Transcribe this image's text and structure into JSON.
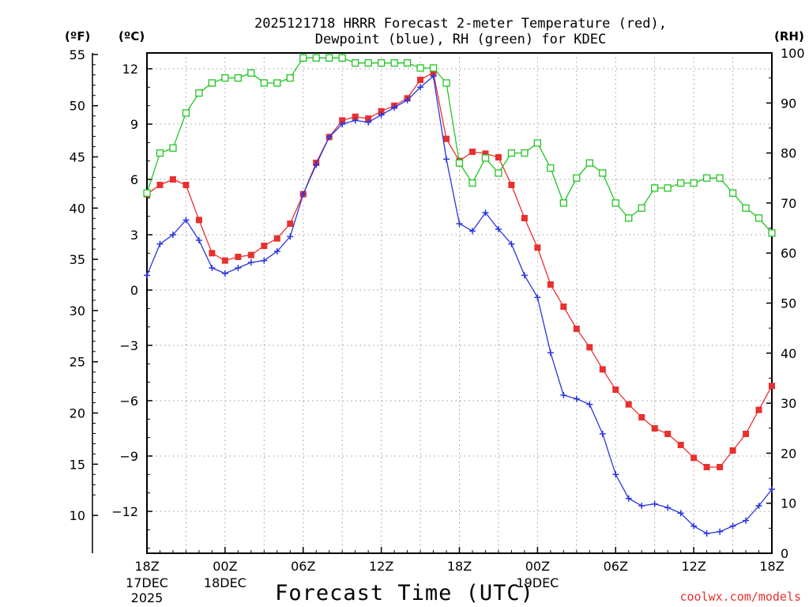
{
  "chart_data": {
    "type": "line",
    "title_line1": "2025121718 HRRR Forecast 2-meter Temperature (red),",
    "title_line2": "Dewpoint (blue), RH (green) for KDEC",
    "xlabel": "Forecast Time (UTC)",
    "credit": "coolwx.com/models",
    "axis_labels": {
      "fahrenheit": "(ºF)",
      "celsius": "(ºC)",
      "rh": "(RH)"
    },
    "fahrenheit_ticks": [
      "55",
      "50",
      "45",
      "40",
      "35",
      "30",
      "25",
      "20",
      "15",
      "10"
    ],
    "celsius_ticks": [
      "12",
      "9",
      "6",
      "3",
      "0",
      "−3",
      "−6",
      "−9",
      "−12"
    ],
    "rh_ticks": [
      "100",
      "90",
      "80",
      "70",
      "60",
      "50",
      "40",
      "30",
      "20",
      "10",
      "0"
    ],
    "x_ticks": [
      {
        "hour": 0,
        "l1": "18Z",
        "l2": "17DEC",
        "l3": "2025"
      },
      {
        "hour": 6,
        "l1": "00Z",
        "l2": "18DEC",
        "l3": ""
      },
      {
        "hour": 12,
        "l1": "06Z",
        "l2": "",
        "l3": ""
      },
      {
        "hour": 18,
        "l1": "12Z",
        "l2": "",
        "l3": ""
      },
      {
        "hour": 24,
        "l1": "18Z",
        "l2": "",
        "l3": ""
      },
      {
        "hour": 30,
        "l1": "00Z",
        "l2": "19DEC",
        "l3": ""
      },
      {
        "hour": 36,
        "l1": "06Z",
        "l2": "",
        "l3": ""
      },
      {
        "hour": 42,
        "l1": "12Z",
        "l2": "",
        "l3": ""
      },
      {
        "hour": 48,
        "l1": "18Z",
        "l2": "",
        "l3": ""
      }
    ],
    "x_range_hours": [
      0,
      48
    ],
    "celsius_range": [
      -14,
      13.5
    ],
    "rh_range": [
      0,
      100
    ],
    "series": [
      {
        "name": "Temperature",
        "unit": "C",
        "color": "#e8302f",
        "marker": "filled-square",
        "values": [
          5.2,
          5.7,
          6.0,
          5.7,
          3.8,
          2.0,
          1.6,
          1.8,
          1.9,
          2.4,
          2.8,
          3.6,
          5.2,
          6.9,
          8.3,
          9.2,
          9.4,
          9.3,
          9.7,
          10.0,
          10.4,
          11.4,
          11.8,
          8.2,
          7.0,
          7.5,
          7.4,
          7.2,
          5.7,
          3.9,
          2.3,
          0.3,
          -0.9,
          -2.1,
          -3.1,
          -4.3,
          -5.4,
          -6.2,
          -6.9,
          -7.5,
          -7.8,
          -8.4,
          -9.1,
          -9.6,
          -9.6,
          -8.7,
          -7.8,
          -6.5,
          -5.2
        ]
      },
      {
        "name": "Dewpoint",
        "unit": "C",
        "color": "#2a36e0",
        "marker": "plus",
        "values": [
          0.8,
          2.5,
          3.0,
          3.8,
          2.7,
          1.2,
          0.9,
          1.2,
          1.5,
          1.6,
          2.1,
          2.9,
          5.2,
          6.8,
          8.3,
          9.0,
          9.2,
          9.1,
          9.5,
          9.9,
          10.3,
          11.0,
          11.6,
          7.1,
          3.6,
          3.2,
          4.2,
          3.3,
          2.5,
          0.8,
          -0.4,
          -3.4,
          -5.7,
          -5.9,
          -6.2,
          -7.8,
          -10.0,
          -11.3,
          -11.7,
          -11.6,
          -11.8,
          -12.1,
          -12.8,
          -13.2,
          -13.1,
          -12.8,
          -12.5,
          -11.7,
          -10.8
        ]
      },
      {
        "name": "RH",
        "unit": "%",
        "color": "#22c422",
        "marker": "open-square",
        "values": [
          72,
          80,
          81,
          88,
          92,
          94,
          95,
          95,
          96,
          94,
          94,
          95,
          99,
          99,
          99,
          99,
          98,
          98,
          98,
          98,
          98,
          97,
          97,
          94,
          78,
          74,
          79,
          76,
          80,
          80,
          82,
          77,
          70,
          75,
          78,
          76,
          70,
          67,
          69,
          73,
          73,
          74,
          74,
          75,
          75,
          72,
          69,
          67,
          64
        ]
      }
    ]
  }
}
